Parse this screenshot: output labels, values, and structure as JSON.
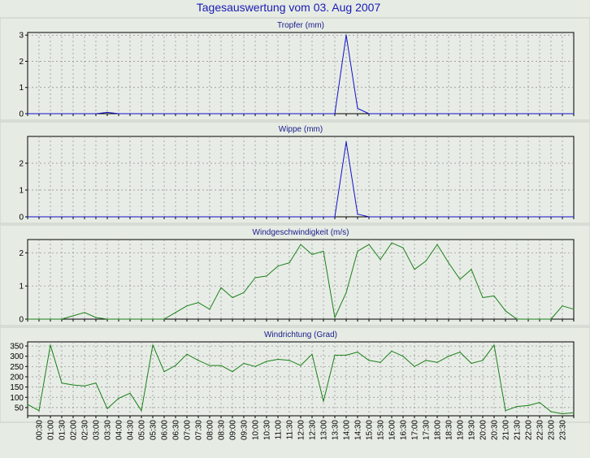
{
  "page_title": "Tagesauswertung vom 03. Aug 2007",
  "colors": {
    "background": "#e6ece4",
    "plot_background": "#e8ece6",
    "grid": "#8a8a8a",
    "title_text": "#1a1ab4",
    "blue_line": "#1010c8",
    "green_line": "#188018"
  },
  "x_labels": [
    "00:30",
    "01:00",
    "01:30",
    "02:00",
    "02:30",
    "03:00",
    "03:30",
    "04:00",
    "04:30",
    "05:00",
    "05:30",
    "06:00",
    "06:30",
    "07:00",
    "07:30",
    "08:00",
    "08:30",
    "09:00",
    "09:30",
    "10:00",
    "10:30",
    "11:00",
    "11:30",
    "12:00",
    "12:30",
    "13:00",
    "13:30",
    "14:00",
    "14:30",
    "15:00",
    "15:30",
    "16:00",
    "16:30",
    "17:00",
    "17:30",
    "18:00",
    "18:30",
    "19:00",
    "19:30",
    "20:00",
    "20:30",
    "21:00",
    "21:30",
    "22:00",
    "22:30",
    "23:00",
    "23:30"
  ],
  "chart_data": [
    {
      "type": "line",
      "title": "Tropfer (mm)",
      "ylim": [
        0,
        3.1
      ],
      "yticks": [
        0,
        1,
        2,
        3
      ],
      "color": "#1010c8",
      "grid": true,
      "x": [
        "00:00",
        "00:30",
        "01:00",
        "01:30",
        "02:00",
        "02:30",
        "03:00",
        "03:30",
        "04:00",
        "04:30",
        "05:00",
        "05:30",
        "06:00",
        "06:30",
        "07:00",
        "07:30",
        "08:00",
        "08:30",
        "09:00",
        "09:30",
        "10:00",
        "10:30",
        "11:00",
        "11:30",
        "12:00",
        "12:30",
        "13:00",
        "13:30",
        "14:00",
        "14:30",
        "15:00",
        "15:30",
        "16:00",
        "16:30",
        "17:00",
        "17:30",
        "18:00",
        "18:30",
        "19:00",
        "19:30",
        "20:00",
        "20:30",
        "21:00",
        "21:30",
        "22:00",
        "22:30",
        "23:00",
        "23:30",
        "24:00"
      ],
      "values": [
        0,
        0,
        0,
        0,
        0,
        0,
        0,
        0.05,
        0,
        0,
        0,
        0,
        0,
        0,
        0,
        0,
        0,
        0,
        0,
        0,
        0,
        0,
        0,
        0,
        0,
        0,
        0,
        0,
        3.0,
        0.2,
        0,
        0,
        0,
        0,
        0,
        0,
        0,
        0,
        0,
        0,
        0,
        0,
        0,
        0,
        0,
        0,
        0,
        0,
        0
      ]
    },
    {
      "type": "line",
      "title": "Wippe (mm)",
      "ylim": [
        0,
        3.0
      ],
      "yticks": [
        0,
        1,
        2
      ],
      "color": "#1010c8",
      "grid": true,
      "x": [
        "00:00",
        "00:30",
        "01:00",
        "01:30",
        "02:00",
        "02:30",
        "03:00",
        "03:30",
        "04:00",
        "04:30",
        "05:00",
        "05:30",
        "06:00",
        "06:30",
        "07:00",
        "07:30",
        "08:00",
        "08:30",
        "09:00",
        "09:30",
        "10:00",
        "10:30",
        "11:00",
        "11:30",
        "12:00",
        "12:30",
        "13:00",
        "13:30",
        "14:00",
        "14:30",
        "15:00",
        "15:30",
        "16:00",
        "16:30",
        "17:00",
        "17:30",
        "18:00",
        "18:30",
        "19:00",
        "19:30",
        "20:00",
        "20:30",
        "21:00",
        "21:30",
        "22:00",
        "22:30",
        "23:00",
        "23:30",
        "24:00"
      ],
      "values": [
        0,
        0,
        0,
        0,
        0,
        0,
        0,
        0,
        0,
        0,
        0,
        0,
        0,
        0,
        0,
        0,
        0,
        0,
        0,
        0,
        0,
        0,
        0,
        0,
        0,
        0,
        0,
        0,
        2.8,
        0.1,
        0,
        0,
        0,
        0,
        0,
        0,
        0,
        0,
        0,
        0,
        0,
        0,
        0,
        0,
        0,
        0,
        0,
        0,
        0
      ]
    },
    {
      "type": "line",
      "title": "Windgeschwindigkeit (m/s)",
      "ylim": [
        0,
        2.4
      ],
      "yticks": [
        0,
        1,
        2
      ],
      "color": "#188018",
      "grid": true,
      "x": [
        "00:00",
        "00:30",
        "01:00",
        "01:30",
        "02:00",
        "02:30",
        "03:00",
        "03:30",
        "04:00",
        "04:30",
        "05:00",
        "05:30",
        "06:00",
        "06:30",
        "07:00",
        "07:30",
        "08:00",
        "08:30",
        "09:00",
        "09:30",
        "10:00",
        "10:30",
        "11:00",
        "11:30",
        "12:00",
        "12:30",
        "13:00",
        "13:30",
        "14:00",
        "14:30",
        "15:00",
        "15:30",
        "16:00",
        "16:30",
        "17:00",
        "17:30",
        "18:00",
        "18:30",
        "19:00",
        "19:30",
        "20:00",
        "20:30",
        "21:00",
        "21:30",
        "22:00",
        "22:30",
        "23:00",
        "23:30",
        "24:00"
      ],
      "values": [
        0,
        0,
        0,
        0,
        0.1,
        0.2,
        0.05,
        0,
        0,
        0,
        0,
        0,
        0,
        0.2,
        0.4,
        0.5,
        0.3,
        0.95,
        0.65,
        0.8,
        1.25,
        1.3,
        1.6,
        1.7,
        2.25,
        1.95,
        2.05,
        0.05,
        0.8,
        2.05,
        2.25,
        1.8,
        2.3,
        2.15,
        1.5,
        1.75,
        2.25,
        1.7,
        1.2,
        1.5,
        0.65,
        0.7,
        0.25,
        0,
        0,
        0,
        0,
        0.4,
        0.3
      ]
    },
    {
      "type": "line",
      "title": "Windrichtung (Grad)",
      "ylim": [
        10,
        370
      ],
      "yticks": [
        50,
        100,
        150,
        200,
        250,
        300,
        350
      ],
      "color": "#188018",
      "grid": true,
      "x": [
        "00:00",
        "00:30",
        "01:00",
        "01:30",
        "02:00",
        "02:30",
        "03:00",
        "03:30",
        "04:00",
        "04:30",
        "05:00",
        "05:30",
        "06:00",
        "06:30",
        "07:00",
        "07:30",
        "08:00",
        "08:30",
        "09:00",
        "09:30",
        "10:00",
        "10:30",
        "11:00",
        "11:30",
        "12:00",
        "12:30",
        "13:00",
        "13:30",
        "14:00",
        "14:30",
        "15:00",
        "15:30",
        "16:00",
        "16:30",
        "17:00",
        "17:30",
        "18:00",
        "18:30",
        "19:00",
        "19:30",
        "20:00",
        "20:30",
        "21:00",
        "21:30",
        "22:00",
        "22:30",
        "23:00",
        "23:30",
        "24:00"
      ],
      "values": [
        65,
        35,
        355,
        170,
        160,
        155,
        170,
        45,
        95,
        120,
        35,
        355,
        225,
        255,
        310,
        280,
        255,
        255,
        225,
        265,
        250,
        275,
        285,
        280,
        255,
        310,
        80,
        305,
        305,
        320,
        280,
        270,
        325,
        300,
        250,
        280,
        270,
        300,
        320,
        265,
        280,
        355,
        35,
        55,
        60,
        75,
        30,
        20,
        25
      ]
    }
  ]
}
